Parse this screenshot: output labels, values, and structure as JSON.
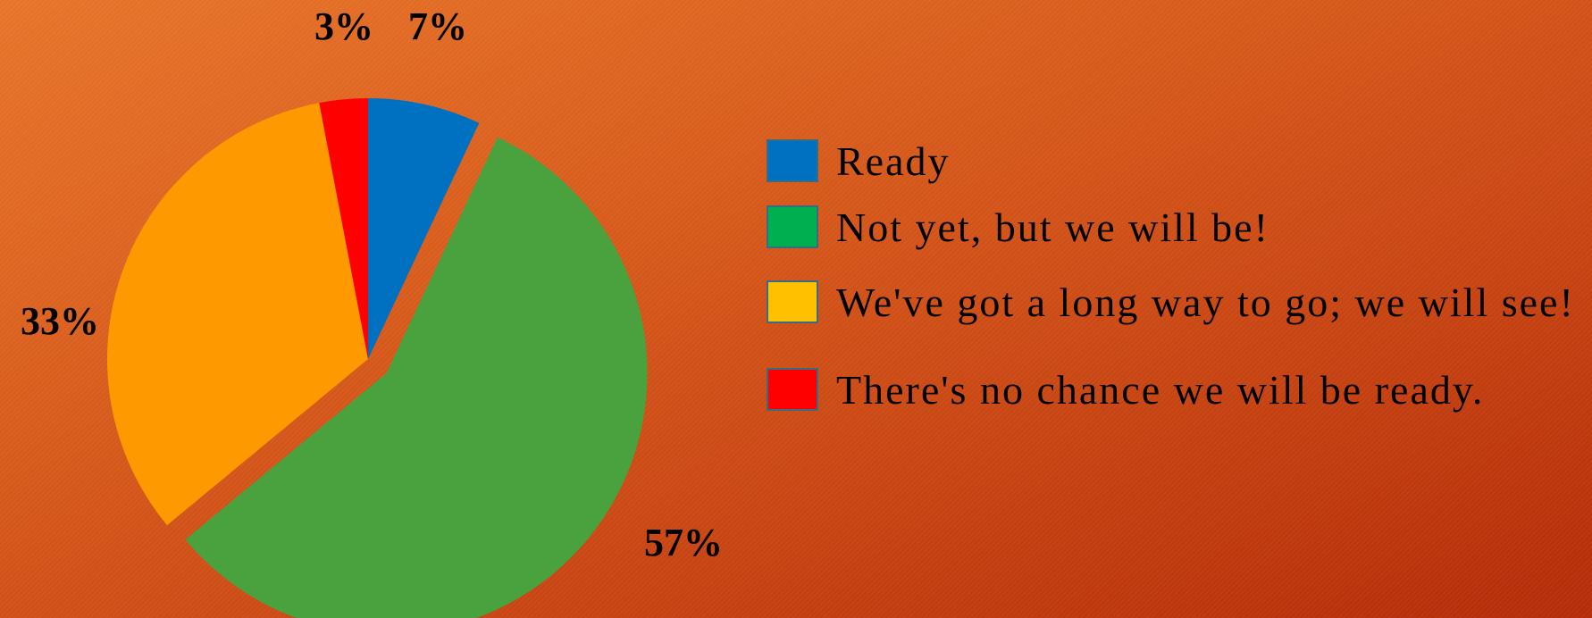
{
  "chart_data": {
    "type": "pie",
    "slices": [
      {
        "name": "Ready",
        "value": 7,
        "label": "7%",
        "color": "#0070c0"
      },
      {
        "name": "Not yet, but we will be!",
        "value": 57,
        "label": "57%",
        "color": "#4aa23f"
      },
      {
        "name": "We've got a long way to go; we will see!",
        "value": 33,
        "label": "33%",
        "color": "#ff9900"
      },
      {
        "name": "There's no chance we will be ready.",
        "value": 3,
        "label": "3%",
        "color": "#ff0000"
      }
    ],
    "exploded_slice": "Not yet, but we will be!",
    "start_angle": "12 o'clock, clockwise",
    "legend": {
      "position": "right",
      "entries": [
        {
          "label": "Ready",
          "color": "#0070c0"
        },
        {
          "label": "Not yet, but we will be!",
          "color": "#00b050"
        },
        {
          "label": "We've got a long way to go; we will see!",
          "color": "#ffc000"
        },
        {
          "label": "There's no chance we will be ready.",
          "color": "#ff0000"
        }
      ]
    }
  }
}
